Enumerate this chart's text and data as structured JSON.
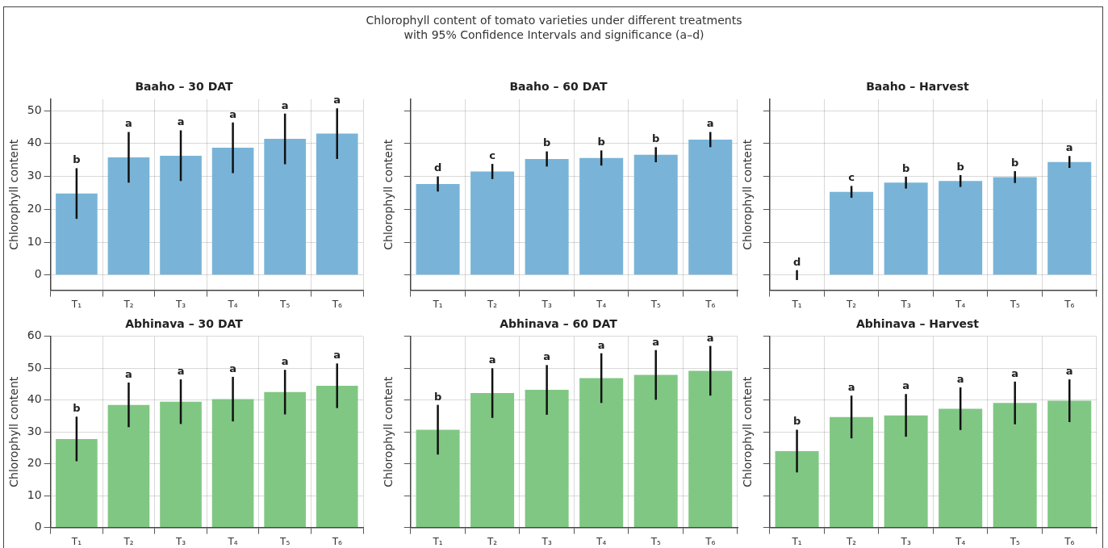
{
  "chart_data": [
    {
      "type": "other",
      "title": "Chlorophyll content of tomato varieties under different treatments\nwith 95% Confidence Intervals and significance (a–d)"
    },
    {
      "type": "bar",
      "title": "Baaho – 30 DAT",
      "ylabel": "Chlorophyll content",
      "categories": [
        "T₁",
        "T₂",
        "T₃",
        "T₄",
        "T₅",
        "T₆"
      ],
      "color": "#79b4d8",
      "values": [
        24.8,
        35.8,
        36.3,
        38.7,
        41.4,
        43.0
      ],
      "errors": [
        7.7,
        7.7,
        7.7,
        7.7,
        7.7,
        7.7
      ],
      "ylim": [
        -4.6,
        53.5
      ],
      "yticks": [
        0,
        10,
        20,
        30,
        40,
        50
      ],
      "grid": true,
      "annotations": [
        {
          "text": "b",
          "x": "T₁",
          "y": 32.5
        },
        {
          "text": "a",
          "x": "T₂",
          "y": 43.5
        },
        {
          "text": "a",
          "x": "T₃",
          "y": 44.0
        },
        {
          "text": "a",
          "x": "T₄",
          "y": 46.4
        },
        {
          "text": "a",
          "x": "T₅",
          "y": 49.1
        },
        {
          "text": "a",
          "x": "T₆",
          "y": 50.7
        }
      ]
    },
    {
      "type": "bar",
      "title": "Baaho – 60 DAT",
      "ylabel": "Chlorophyll content",
      "categories": [
        "T₁",
        "T₂",
        "T₃",
        "T₄",
        "T₅",
        "T₆"
      ],
      "color": "#79b4d8",
      "values": [
        27.7,
        31.5,
        35.3,
        35.6,
        36.6,
        41.2
      ],
      "errors": [
        2.3,
        2.3,
        2.3,
        2.3,
        2.3,
        2.3
      ],
      "ylim": [
        -4.6,
        53.5
      ],
      "yticks": [
        0,
        10,
        20,
        30,
        40,
        50
      ],
      "grid": true,
      "tick_labels": "x",
      "annotations": [
        {
          "text": "d",
          "x": "T₁",
          "y": 30.0
        },
        {
          "text": "c",
          "x": "T₂",
          "y": 33.8
        },
        {
          "text": "b",
          "x": "T₃",
          "y": 37.6
        },
        {
          "text": "b",
          "x": "T₄",
          "y": 37.9
        },
        {
          "text": "b",
          "x": "T₅",
          "y": 38.9
        },
        {
          "text": "a",
          "x": "T₆",
          "y": 43.5
        }
      ]
    },
    {
      "type": "bar",
      "title": "Baaho – Harvest",
      "ylabel": "Chlorophyll content",
      "categories": [
        "T₁",
        "T₂",
        "T₃",
        "T₄",
        "T₅",
        "T₆"
      ],
      "color": "#79b4d8",
      "values": [
        0,
        25.3,
        28.1,
        28.6,
        29.8,
        34.4
      ],
      "errors": [
        1.5,
        1.8,
        1.8,
        1.8,
        1.8,
        1.8
      ],
      "ylim": [
        -4.6,
        53.5
      ],
      "yticks": [
        0,
        10,
        20,
        30,
        40,
        50
      ],
      "grid": true,
      "tick_labels": "x",
      "annotations": [
        {
          "text": "d",
          "x": "T₁",
          "y": 1.5
        },
        {
          "text": "c",
          "x": "T₂",
          "y": 27.1
        },
        {
          "text": "b",
          "x": "T₃",
          "y": 29.9
        },
        {
          "text": "b",
          "x": "T₄",
          "y": 30.4
        },
        {
          "text": "b",
          "x": "T₅",
          "y": 31.6
        },
        {
          "text": "a",
          "x": "T₆",
          "y": 36.2
        }
      ]
    },
    {
      "type": "bar",
      "title": "Abhinava – 30 DAT",
      "ylabel": "Chlorophyll content",
      "categories": [
        "T₁",
        "T₂",
        "T₃",
        "T₄",
        "T₅",
        "T₆"
      ],
      "color": "#80c783",
      "values": [
        27.8,
        38.5,
        39.5,
        40.3,
        42.5,
        44.5
      ],
      "errors": [
        7,
        7,
        7,
        7,
        7,
        7
      ],
      "ylim": [
        0,
        60
      ],
      "yticks": [
        0,
        10,
        20,
        30,
        40,
        50,
        60
      ],
      "grid": true,
      "annotations": [
        {
          "text": "b",
          "x": "T₁",
          "y": 34.8
        },
        {
          "text": "a",
          "x": "T₂",
          "y": 45.5
        },
        {
          "text": "a",
          "x": "T₃",
          "y": 46.5
        },
        {
          "text": "a",
          "x": "T₄",
          "y": 47.3
        },
        {
          "text": "a",
          "x": "T₅",
          "y": 49.5
        },
        {
          "text": "a",
          "x": "T₆",
          "y": 51.5
        }
      ]
    },
    {
      "type": "bar",
      "title": "Abhinava – 60 DAT",
      "ylabel": "Chlorophyll content",
      "categories": [
        "T₁",
        "T₂",
        "T₃",
        "T₄",
        "T₅",
        "T₆"
      ],
      "color": "#80c783",
      "values": [
        30.7,
        42.2,
        43.2,
        46.9,
        47.9,
        49.2
      ],
      "errors": [
        7.8,
        7.8,
        7.8,
        7.8,
        7.8,
        7.8
      ],
      "ylim": [
        0,
        60
      ],
      "yticks": [
        0,
        10,
        20,
        30,
        40,
        50,
        60
      ],
      "grid": true,
      "tick_labels": "x",
      "annotations": [
        {
          "text": "b",
          "x": "T₁",
          "y": 38.5
        },
        {
          "text": "a",
          "x": "T₂",
          "y": 50.0
        },
        {
          "text": "a",
          "x": "T₃",
          "y": 51.0
        },
        {
          "text": "a",
          "x": "T₄",
          "y": 54.7
        },
        {
          "text": "a",
          "x": "T₅",
          "y": 55.7
        },
        {
          "text": "a",
          "x": "T₆",
          "y": 57.0
        }
      ]
    },
    {
      "type": "bar",
      "title": "Abhinava – Harvest",
      "ylabel": "Chlorophyll content",
      "categories": [
        "T₁",
        "T₂",
        "T₃",
        "T₄",
        "T₅",
        "T₆"
      ],
      "color": "#80c783",
      "values": [
        24.0,
        34.7,
        35.2,
        37.3,
        39.1,
        39.8
      ],
      "errors": [
        6.7,
        6.7,
        6.7,
        6.7,
        6.7,
        6.7
      ],
      "ylim": [
        0,
        60
      ],
      "yticks": [
        0,
        10,
        20,
        30,
        40,
        50,
        60
      ],
      "grid": true,
      "tick_labels": "x",
      "annotations": [
        {
          "text": "b",
          "x": "T₁",
          "y": 30.7
        },
        {
          "text": "a",
          "x": "T₂",
          "y": 41.4
        },
        {
          "text": "a",
          "x": "T₃",
          "y": 41.9
        },
        {
          "text": "a",
          "x": "T₄",
          "y": 44.0
        },
        {
          "text": "a",
          "x": "T₅",
          "y": 45.8
        },
        {
          "text": "a",
          "x": "T₆",
          "y": 46.5
        }
      ]
    }
  ]
}
